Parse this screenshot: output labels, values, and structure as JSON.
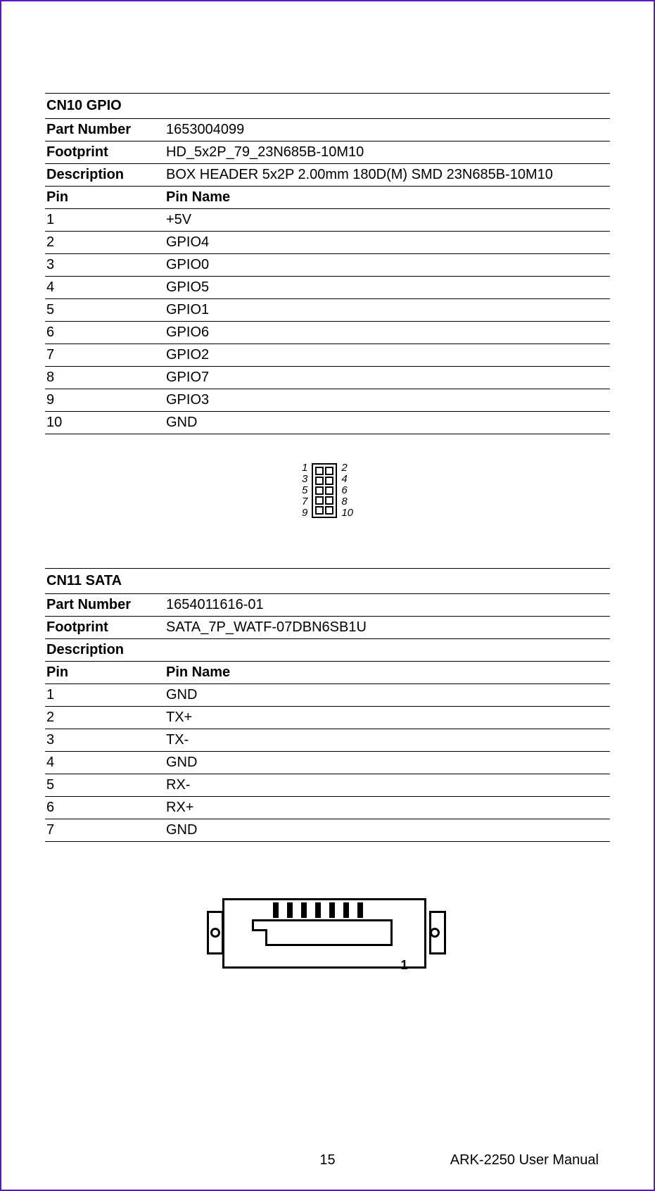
{
  "page": {
    "number": "15",
    "manual_title": "ARK-2250 User Manual"
  },
  "cn10": {
    "title": "CN10 GPIO",
    "part_number_label": "Part Number",
    "part_number": "1653004099",
    "footprint_label": "Footprint",
    "footprint": "HD_5x2P_79_23N685B-10M10",
    "description_label": "Description",
    "description": "BOX HEADER 5x2P 2.00mm 180D(M) SMD 23N685B-10M10",
    "pin_header_left": "Pin",
    "pin_header_right": "Pin Name",
    "pins": [
      {
        "n": "1",
        "name": "+5V"
      },
      {
        "n": "2",
        "name": "GPIO4"
      },
      {
        "n": "3",
        "name": "GPIO0"
      },
      {
        "n": "4",
        "name": "GPIO5"
      },
      {
        "n": "5",
        "name": "GPIO1"
      },
      {
        "n": "6",
        "name": "GPIO6"
      },
      {
        "n": "7",
        "name": "GPIO2"
      },
      {
        "n": "8",
        "name": "GPIO7"
      },
      {
        "n": "9",
        "name": "GPIO3"
      },
      {
        "n": "10",
        "name": "GND"
      }
    ],
    "figure": {
      "left_labels": [
        "1",
        "3",
        "5",
        "7",
        "9"
      ],
      "right_labels": [
        "2",
        "4",
        "6",
        "8",
        "10"
      ],
      "rows": 5,
      "cols": 2
    }
  },
  "cn11": {
    "title": "CN11 SATA",
    "part_number_label": "Part Number",
    "part_number": "1654011616-01",
    "footprint_label": "Footprint",
    "footprint": "SATA_7P_WATF-07DBN6SB1U",
    "description_label": "Description",
    "description": "",
    "pin_header_left": "Pin",
    "pin_header_right": "Pin Name",
    "pins": [
      {
        "n": "1",
        "name": "GND"
      },
      {
        "n": "2",
        "name": "TX+"
      },
      {
        "n": "3",
        "name": "TX-"
      },
      {
        "n": "4",
        "name": "GND"
      },
      {
        "n": "5",
        "name": "RX-"
      },
      {
        "n": "6",
        "name": "RX+"
      },
      {
        "n": "7",
        "name": "GND"
      }
    ],
    "figure": {
      "pin1_label": "1",
      "pin_count": 7
    }
  }
}
